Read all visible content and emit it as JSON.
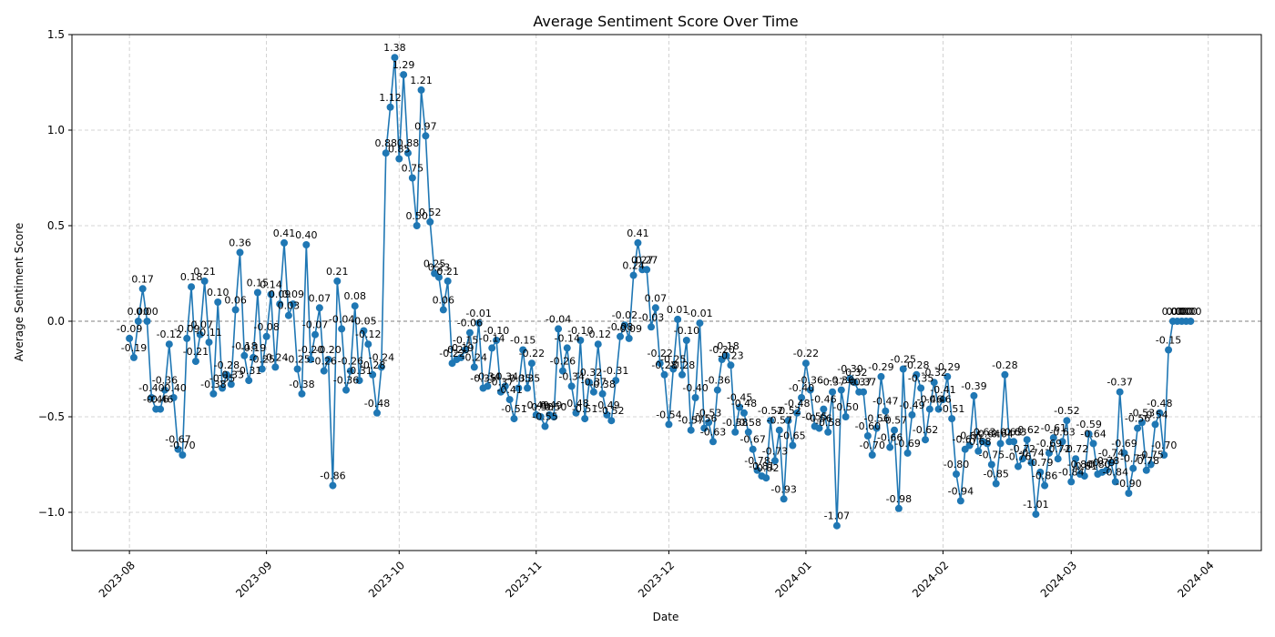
{
  "chart_data": {
    "type": "line",
    "title": "Average Sentiment Score Over Time",
    "xlabel": "Date",
    "ylabel": "Average Sentiment Score",
    "ylim": [
      -1.2,
      1.5
    ],
    "xlim": [
      "2023-07-19",
      "2024-04-13"
    ],
    "yticks": [
      -1.0,
      -0.5,
      0.0,
      0.5,
      1.0,
      1.5
    ],
    "ytick_labels": [
      "−1.0",
      "−0.5",
      "0.0",
      "0.5",
      "1.0",
      "1.5"
    ],
    "xticks": [
      "2023-08-01",
      "2023-09-01",
      "2023-10-01",
      "2023-11-01",
      "2023-12-01",
      "2024-01-01",
      "2024-02-01",
      "2024-03-01",
      "2024-04-01"
    ],
    "xtick_labels": [
      "2023-08",
      "2023-09",
      "2023-10",
      "2023-11",
      "2023-12",
      "2024-01",
      "2024-02",
      "2024-03",
      "2024-04"
    ],
    "grid": true,
    "reference_line": 0,
    "series": [
      {
        "color": "#1f77b4",
        "start_date": "2023-08-01",
        "values": [
          -0.09,
          -0.19,
          0.0,
          0.17,
          0.0,
          -0.4,
          -0.46,
          -0.46,
          -0.36,
          -0.12,
          -0.4,
          -0.67,
          -0.7,
          -0.09,
          0.18,
          -0.21,
          -0.07,
          0.21,
          -0.11,
          -0.38,
          0.1,
          -0.35,
          -0.28,
          -0.33,
          0.06,
          0.36,
          -0.18,
          -0.31,
          -0.19,
          0.15,
          -0.25,
          -0.08,
          0.14,
          -0.24,
          0.09,
          0.41,
          0.03,
          0.09,
          -0.25,
          -0.38,
          0.4,
          -0.2,
          -0.07,
          0.07,
          -0.26,
          -0.2,
          -0.86,
          0.21,
          -0.04,
          -0.36,
          -0.26,
          0.08,
          -0.31,
          -0.05,
          -0.12,
          -0.28,
          -0.48,
          -0.24,
          0.88,
          1.12,
          1.38,
          0.85,
          1.29,
          0.88,
          0.75,
          0.5,
          1.21,
          0.97,
          0.52,
          0.25,
          0.23,
          0.06,
          0.21,
          -0.22,
          -0.2,
          -0.19,
          -0.15,
          -0.06,
          -0.24,
          -0.01,
          -0.35,
          -0.34,
          -0.14,
          -0.1,
          -0.37,
          -0.34,
          -0.41,
          -0.51,
          -0.35,
          -0.15,
          -0.35,
          -0.22,
          -0.49,
          -0.5,
          -0.55,
          -0.49,
          -0.5,
          -0.04,
          -0.26,
          -0.14,
          -0.34,
          -0.48,
          -0.1,
          -0.51,
          -0.32,
          -0.37,
          -0.12,
          -0.38,
          -0.49,
          -0.52,
          -0.31,
          -0.08,
          -0.02,
          -0.09,
          0.24,
          0.41,
          0.27,
          0.27,
          -0.03,
          0.07,
          -0.22,
          -0.28,
          -0.54,
          -0.25,
          0.01,
          -0.28,
          -0.1,
          -0.57,
          -0.4,
          -0.01,
          -0.56,
          -0.53,
          -0.63,
          -0.36,
          -0.2,
          -0.18,
          -0.23,
          -0.58,
          -0.45,
          -0.48,
          -0.58,
          -0.67,
          -0.78,
          -0.81,
          -0.82,
          -0.52,
          -0.73,
          -0.57,
          -0.93,
          -0.52,
          -0.65,
          -0.48,
          -0.4,
          -0.22,
          -0.36,
          -0.55,
          -0.56,
          -0.46,
          -0.58,
          -0.37,
          -1.07,
          -0.36,
          -0.5,
          -0.3,
          -0.32,
          -0.37,
          -0.37,
          -0.6,
          -0.7,
          -0.56,
          -0.29,
          -0.47,
          -0.66,
          -0.57,
          -0.98,
          -0.25,
          -0.69,
          -0.49,
          -0.28,
          -0.35,
          -0.62,
          -0.46,
          -0.32,
          -0.46,
          -0.41,
          -0.29,
          -0.51,
          -0.8,
          -0.94,
          -0.67,
          -0.65,
          -0.39,
          -0.68,
          -0.63,
          -0.64,
          -0.75,
          -0.85,
          -0.64,
          -0.28,
          -0.63,
          -0.63,
          -0.76,
          -0.72,
          -0.62,
          -0.74,
          -1.01,
          -0.79,
          -0.86,
          -0.69,
          -0.61,
          -0.72,
          -0.63,
          -0.52,
          -0.84,
          -0.72,
          -0.8,
          -0.81,
          -0.59,
          -0.64,
          -0.8,
          -0.79,
          -0.78,
          -0.74,
          -0.84,
          -0.37,
          -0.69,
          -0.9,
          -0.77,
          -0.56,
          -0.53,
          -0.78,
          -0.75,
          -0.54,
          -0.48,
          -0.7,
          -0.15,
          0.0,
          0.0,
          0.0,
          0.0,
          0.0
        ]
      }
    ]
  }
}
